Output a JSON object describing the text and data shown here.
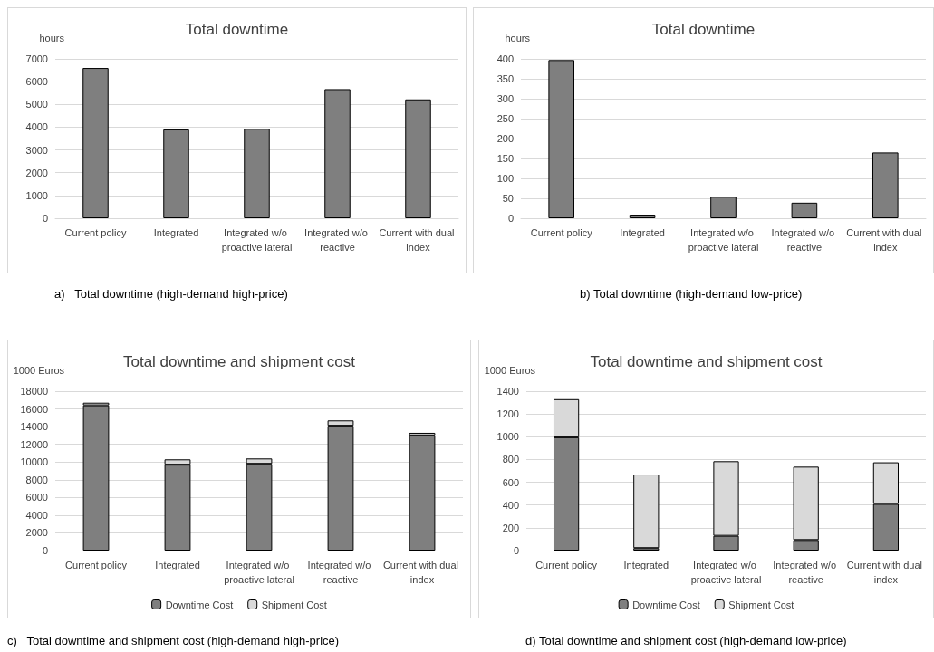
{
  "chart_data": [
    {
      "type": "bar",
      "title": "Total downtime",
      "ylabel": "hours",
      "categories": [
        "Current policy",
        "Integrated",
        "Integrated w/o proactive lateral",
        "Integrated w/o reactive",
        "Current with dual index"
      ],
      "values": [
        6600,
        3900,
        3930,
        5670,
        5220
      ],
      "color": "#7f7f7f",
      "ylim": [
        0,
        7000
      ],
      "yticks": [
        0,
        1000,
        2000,
        3000,
        4000,
        5000,
        6000,
        7000
      ],
      "grid": "y",
      "annotations": [
        "a)   Total downtime (high-demand high-price)"
      ]
    },
    {
      "type": "bar",
      "title": "Total downtime",
      "ylabel": "hours",
      "categories": [
        "Current policy",
        "Integrated",
        "Integrated w/o proactive lateral",
        "Integrated w/o reactive",
        "Current with dual index"
      ],
      "values": [
        397,
        9,
        54,
        39,
        165
      ],
      "color": "#7f7f7f",
      "ylim": [
        0,
        400
      ],
      "yticks": [
        0,
        50,
        100,
        150,
        200,
        250,
        300,
        350,
        400
      ],
      "grid": "y",
      "annotations": [
        "b) Total downtime (high-demand low-price)"
      ]
    },
    {
      "type": "bar",
      "title": "Total downtime and shipment cost",
      "ylabel": "1000 Euros",
      "categories": [
        "Current policy",
        "Integrated",
        "Integrated w/o proactive lateral",
        "Integrated w/o reactive",
        "Current with dual index"
      ],
      "stacked": true,
      "series": [
        {
          "name": "Downtime Cost",
          "color": "#7f7f7f",
          "values": [
            16400,
            9700,
            9800,
            14100,
            13000
          ]
        },
        {
          "name": "Shipment Cost",
          "color": "#d9d9d9",
          "values": [
            300,
            600,
            600,
            600,
            300
          ]
        }
      ],
      "ylim": [
        0,
        18000
      ],
      "yticks": [
        0,
        2000,
        4000,
        6000,
        8000,
        10000,
        12000,
        14000,
        16000,
        18000
      ],
      "grid": "y",
      "legend": "bottom",
      "annotations": [
        "c)   Total downtime and shipment cost (high-demand high-price)"
      ]
    },
    {
      "type": "bar",
      "title": "Total downtime and shipment cost",
      "ylabel": "1000 Euros",
      "categories": [
        "Current policy",
        "Integrated",
        "Integrated w/o proactive lateral",
        "Integrated w/o reactive",
        "Current with dual index"
      ],
      "stacked": true,
      "series": [
        {
          "name": "Downtime Cost",
          "color": "#7f7f7f",
          "values": [
            995,
            22,
            130,
            93,
            410
          ]
        },
        {
          "name": "Shipment Cost",
          "color": "#d9d9d9",
          "values": [
            335,
            646,
            655,
            644,
            365
          ]
        }
      ],
      "ylim": [
        0,
        1400
      ],
      "yticks": [
        0,
        200,
        400,
        600,
        800,
        1000,
        1200,
        1400
      ],
      "grid": "y",
      "legend": "bottom",
      "annotations": [
        "d) Total downtime and shipment cost (high-demand low-price)"
      ]
    }
  ]
}
